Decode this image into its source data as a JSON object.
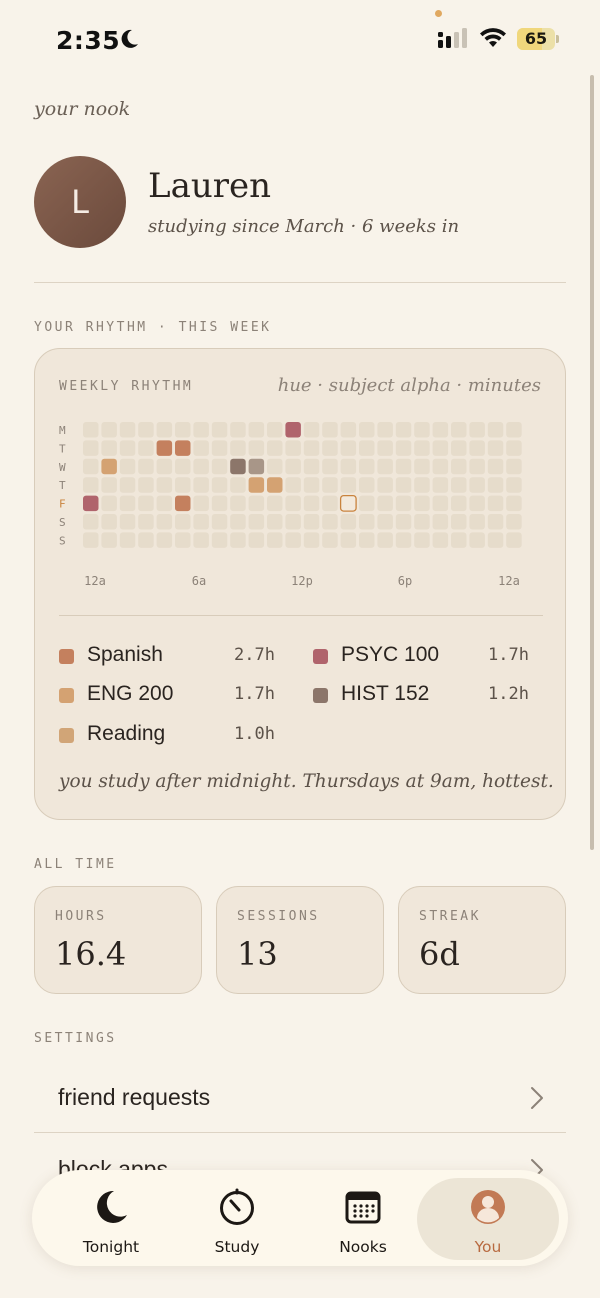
{
  "status_bar": {
    "time": "2:35",
    "battery": "65",
    "icons": [
      "moon-icon",
      "cellular-signal-icon",
      "wifi-icon",
      "battery-icon"
    ]
  },
  "header": {
    "nook_label": "your nook"
  },
  "profile": {
    "avatar_initial": "L",
    "name": "Lauren",
    "subtitle": "studying since March · 6 weeks in"
  },
  "rhythm_section": {
    "label": "YOUR RHYTHM · THIS WEEK",
    "card_title": "WEEKLY RHYTHM",
    "legend_hint": "hue · subject  alpha · minutes",
    "day_labels": [
      "M",
      "T",
      "W",
      "T",
      "F",
      "S",
      "S"
    ],
    "hour_labels": [
      "12a",
      "6a",
      "12p",
      "6p",
      "12a"
    ],
    "highlight_day": 4,
    "cells": [
      {
        "day": 0,
        "slot": 11,
        "subject": "PSYC 100"
      },
      {
        "day": 1,
        "slot": 4,
        "subject": "Spanish"
      },
      {
        "day": 1,
        "slot": 5,
        "subject": "Spanish"
      },
      {
        "day": 2,
        "slot": 1,
        "subject": "ENG 200"
      },
      {
        "day": 2,
        "slot": 8,
        "subject": "HIST 152"
      },
      {
        "day": 2,
        "slot": 9,
        "subject": "HIST 152 (light)"
      },
      {
        "day": 3,
        "slot": 9,
        "subject": "ENG 200"
      },
      {
        "day": 3,
        "slot": 10,
        "subject": "ENG 200"
      },
      {
        "day": 4,
        "slot": 0,
        "subject": "PSYC 100"
      },
      {
        "day": 4,
        "slot": 5,
        "subject": "Spanish"
      },
      {
        "day": 4,
        "slot": 14,
        "subject": "today"
      }
    ],
    "subjects": [
      {
        "name": "Spanish",
        "hours": "2.7h",
        "color": "#c4805e"
      },
      {
        "name": "PSYC 100",
        "hours": "1.7h",
        "color": "#b0646c"
      },
      {
        "name": "ENG 200",
        "hours": "1.7h",
        "color": "#d4a272"
      },
      {
        "name": "HIST 152",
        "hours": "1.2h",
        "color": "#8c766a"
      },
      {
        "name": "Reading",
        "hours": "1.0h",
        "color": "#d1a577"
      }
    ],
    "insight": "you study after midnight. Thursdays at 9am, hottest."
  },
  "all_time": {
    "label": "ALL TIME",
    "stats": [
      {
        "label": "HOURS",
        "value": "16.4"
      },
      {
        "label": "SESSIONS",
        "value": "13"
      },
      {
        "label": "STREAK",
        "value": "6d"
      }
    ]
  },
  "settings": {
    "label": "SETTINGS",
    "items": [
      {
        "label": "friend requests"
      },
      {
        "label": "block apps"
      }
    ]
  },
  "tabbar": {
    "tabs": [
      {
        "label": "Tonight",
        "icon": "moon-icon"
      },
      {
        "label": "Study",
        "icon": "timer-icon"
      },
      {
        "label": "Nooks",
        "icon": "calendar-icon"
      },
      {
        "label": "You",
        "icon": "profile-icon"
      }
    ],
    "active": "You"
  },
  "colors": {
    "background": "#f8f3ea",
    "card": "#f0e7da",
    "accent": "#b86a40",
    "empty_cell": "#e6dccb"
  }
}
